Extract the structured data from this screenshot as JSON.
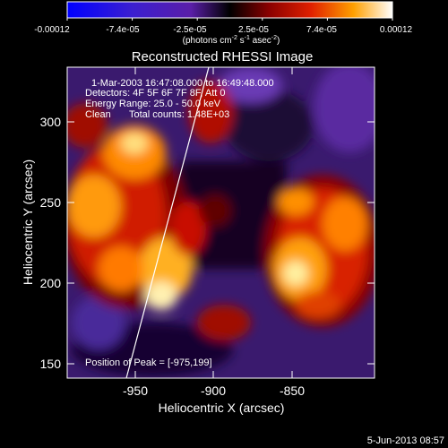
{
  "chart_data": {
    "type": "heatmap",
    "title": "Reconstructed RHESSI Image",
    "xlabel": "Heliocentric X (arcsec)",
    "ylabel": "Heliocentric Y (arcsec)",
    "xticks": [
      "-950",
      "-900",
      "-850"
    ],
    "yticks": [
      "150",
      "200",
      "250",
      "300"
    ],
    "colorbar": {
      "ticks": [
        "-0.00012",
        "-7.4e-05",
        "-2.5e-05",
        "2.5e-05",
        "7.4e-05",
        "0.00012"
      ],
      "unit_prefix": "(photons cm",
      "unit_sup1": "-2",
      "unit_mid": " s",
      "unit_sup2": "-1",
      "unit_mid2": " asec",
      "unit_sup3": "-2",
      "unit_suffix": ")",
      "range": [
        -0.00012,
        0.00012
      ]
    },
    "annotations": {
      "time": "1-Mar-2003 16:47:08.000 to 16:49:48.000",
      "detectors": "Detectors: 4F 5F 6F 7F 8F, Att 0",
      "energy": "Energy Range: 25.0 - 50.0 keV",
      "clean": "Clean",
      "counts": "Total counts: 1.48E+03",
      "peak": "Position of Peak = [-975,199]"
    },
    "xlim": [
      -995,
      -805
    ],
    "ylim": [
      140,
      335
    ],
    "grid": false
  },
  "footer": {
    "date": "5-Jun-2013 08:57"
  }
}
